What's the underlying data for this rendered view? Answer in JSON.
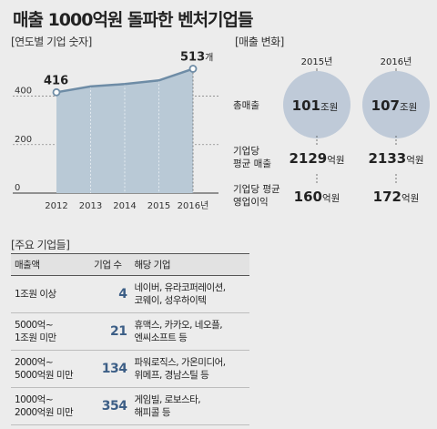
{
  "title": "매출 1000억원 돌파한 벤처기업들",
  "chart_data": [
    {
      "type": "area",
      "section_label": "[연도별 기업 숫자]",
      "x": [
        "2012",
        "2013",
        "2014",
        "2015",
        "2016년"
      ],
      "values": [
        416,
        440,
        450,
        465,
        513
      ],
      "labeled_points": [
        {
          "label": "416",
          "unit": ""
        },
        {
          "label": "513",
          "unit": "개"
        }
      ],
      "y_ticks": [
        "0",
        "200",
        "400"
      ],
      "ylim": [
        0,
        560
      ],
      "grid": true
    },
    {
      "type": "table",
      "section_label": "[매출 변화]",
      "years": [
        "2015년",
        "2016년"
      ],
      "rows": [
        {
          "label": "총매출",
          "values": [
            "101",
            "107"
          ],
          "unit": "조원",
          "bubble": true
        },
        {
          "label_lines": [
            "기업당",
            "평균 매출"
          ],
          "values": [
            "2129",
            "2133"
          ],
          "unit": "억원"
        },
        {
          "label_lines": [
            "기업당 평균",
            "영업이익"
          ],
          "values": [
            "160",
            "172"
          ],
          "unit": "억원"
        }
      ]
    }
  ],
  "major_companies": {
    "section_label": "[주요 기업들]",
    "headers": [
      "매출액",
      "기업 수",
      "해당 기업"
    ],
    "rows": [
      {
        "range": "1조원 이상",
        "count": "4",
        "companies": "네이버, 유라코퍼레이션,\n코웨이, 성우하이텍"
      },
      {
        "range": "5000억~\n1조원 미만",
        "count": "21",
        "companies": "휴맥스, 카카오, 네오플,\n엔씨소프트 등"
      },
      {
        "range": "2000억~\n5000억원 미만",
        "count": "134",
        "companies": "파워로직스, 가온미디어,\n위메프, 경남스틸 등"
      },
      {
        "range": "1000억~\n2000억원 미만",
        "count": "354",
        "companies": "게임빌, 로보스타,\n해피콜 등"
      }
    ]
  },
  "colors": {
    "area_fill": "#b9c9d6",
    "line": "#6e8ca6",
    "bubble": "#bfcad8",
    "count_text": "#3c5e86"
  }
}
